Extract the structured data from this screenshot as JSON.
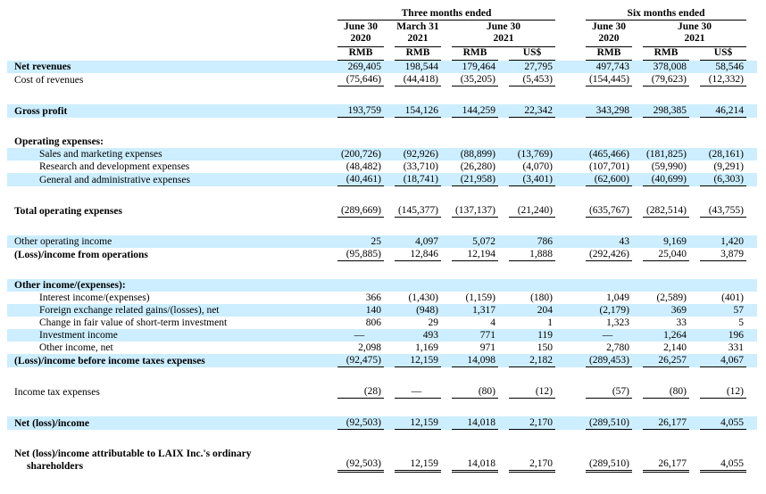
{
  "colors": {
    "highlight": "#cceeff",
    "text": "#000000",
    "rule": "#000000"
  },
  "table": {
    "group_headers": [
      {
        "label": "Three months ended",
        "span": 4
      },
      {
        "label": "Six months ended",
        "span": 3
      }
    ],
    "date_headers": [
      {
        "line1": "June 30",
        "line2": "2020",
        "span": 1
      },
      {
        "line1": "March 31",
        "line2": "2021",
        "span": 1
      },
      {
        "line1": "June 30",
        "line2": "2021",
        "span": 2
      },
      {
        "line1": "June 30",
        "line2": "2020",
        "span": 1
      },
      {
        "line1": "June 30",
        "line2": "2021",
        "span": 2
      }
    ],
    "currency_headers": [
      "RMB",
      "RMB",
      "RMB",
      "US$",
      "RMB",
      "RMB",
      "US$"
    ],
    "rows": [
      {
        "label": "Net revenues",
        "bold": true,
        "hl": true,
        "ind": 0,
        "u": "none",
        "values": [
          "269,405",
          "198,544",
          "179,464",
          "27,795",
          "497,743",
          "378,008",
          "58,546"
        ]
      },
      {
        "label": "Cost of revenues",
        "bold": false,
        "hl": false,
        "ind": 0,
        "u": "single",
        "values": [
          "(75,646)",
          "(44,418)",
          "(35,205)",
          "(5,453)",
          "(154,445)",
          "(79,623)",
          "(12,332)"
        ]
      },
      {
        "spacer": true
      },
      {
        "label": "Gross profit",
        "bold": true,
        "hl": true,
        "ind": 0,
        "u": "single",
        "values": [
          "193,759",
          "154,126",
          "144,259",
          "22,342",
          "343,298",
          "298,385",
          "46,214"
        ]
      },
      {
        "spacer": true
      },
      {
        "label": "Operating expenses:",
        "bold": true,
        "hl": false,
        "ind": 0,
        "u": "none",
        "values": null
      },
      {
        "label": "Sales and marketing expenses",
        "bold": false,
        "hl": true,
        "ind": 1,
        "u": "none",
        "values": [
          "(200,726)",
          "(92,926)",
          "(88,899)",
          "(13,769)",
          "(465,466)",
          "(181,825)",
          "(28,161)"
        ]
      },
      {
        "label": "Research and development expenses",
        "bold": false,
        "hl": false,
        "ind": 1,
        "u": "none",
        "values": [
          "(48,482)",
          "(33,710)",
          "(26,280)",
          "(4,070)",
          "(107,701)",
          "(59,990)",
          "(9,291)"
        ]
      },
      {
        "label": "General and administrative expenses",
        "bold": false,
        "hl": true,
        "ind": 1,
        "u": "single",
        "values": [
          "(40,461)",
          "(18,741)",
          "(21,958)",
          "(3,401)",
          "(62,600)",
          "(40,699)",
          "(6,303)"
        ]
      },
      {
        "spacer": true
      },
      {
        "label": "Total operating expenses",
        "bold": true,
        "hl": false,
        "ind": 0,
        "u": "single",
        "values": [
          "(289,669)",
          "(145,377)",
          "(137,137)",
          "(21,240)",
          "(635,767)",
          "(282,514)",
          "(43,755)"
        ]
      },
      {
        "spacer": true
      },
      {
        "label": "Other operating income",
        "bold": false,
        "hl": true,
        "ind": 0,
        "u": "none",
        "values": [
          "25",
          "4,097",
          "5,072",
          "786",
          "43",
          "9,169",
          "1,420"
        ]
      },
      {
        "label": "(Loss)/income from operations",
        "bold": true,
        "hl": false,
        "ind": 0,
        "u": "single",
        "values": [
          "(95,885)",
          "12,846",
          "12,194",
          "1,888",
          "(292,426)",
          "25,040",
          "3,879"
        ]
      },
      {
        "spacer": true
      },
      {
        "label": "Other income/(expenses):",
        "bold": true,
        "hl": true,
        "ind": 0,
        "u": "none",
        "values": null
      },
      {
        "label": "Interest income/(expenses)",
        "bold": false,
        "hl": false,
        "ind": 1,
        "u": "none",
        "values": [
          "366",
          "(1,430)",
          "(1,159)",
          "(180)",
          "1,049",
          "(2,589)",
          "(401)"
        ]
      },
      {
        "label": "Foreign exchange related gains/(losses), net",
        "bold": false,
        "hl": true,
        "ind": 1,
        "u": "none",
        "values": [
          "140",
          "(948)",
          "1,317",
          "204",
          "(2,179)",
          "369",
          "57"
        ]
      },
      {
        "label": "Change in fair value of short-term investment",
        "bold": false,
        "hl": false,
        "ind": 1,
        "u": "none",
        "values": [
          "806",
          "29",
          "4",
          "1",
          "1,323",
          "33",
          "5"
        ]
      },
      {
        "label": "Investment income",
        "bold": false,
        "hl": true,
        "ind": 1,
        "u": "none",
        "values": [
          "—",
          "493",
          "771",
          "119",
          "—",
          "1,264",
          "196"
        ]
      },
      {
        "label": "Other income, net",
        "bold": false,
        "hl": false,
        "ind": 1,
        "u": "none",
        "values": [
          "2,098",
          "1,169",
          "971",
          "150",
          "2,780",
          "2,140",
          "331"
        ]
      },
      {
        "label": "(Loss)/income before income taxes expenses",
        "bold": true,
        "hl": true,
        "ind": 0,
        "u": "single",
        "values": [
          "(92,475)",
          "12,159",
          "14,098",
          "2,182",
          "(289,453)",
          "26,257",
          "4,067"
        ]
      },
      {
        "spacer": true
      },
      {
        "label": "Income tax expenses",
        "bold": false,
        "hl": false,
        "ind": 0,
        "u": "single",
        "values": [
          "(28)",
          "—",
          "(80)",
          "(12)",
          "(57)",
          "(80)",
          "(12)"
        ]
      },
      {
        "spacer": true
      },
      {
        "label": "Net (loss)/income",
        "bold": true,
        "hl": true,
        "ind": 0,
        "u": "single",
        "values": [
          "(92,503)",
          "12,159",
          "14,018",
          "2,170",
          "(289,510)",
          "26,177",
          "4,055"
        ]
      },
      {
        "spacer": true
      },
      {
        "label": "Net (loss)/income attributable to LAIX Inc.'s ordinary shareholders",
        "bold": true,
        "hl": false,
        "ind": 0,
        "u": "double",
        "wrap": true,
        "values": [
          "(92,503)",
          "12,159",
          "14,018",
          "2,170",
          "(289,510)",
          "26,177",
          "4,055"
        ]
      }
    ]
  }
}
